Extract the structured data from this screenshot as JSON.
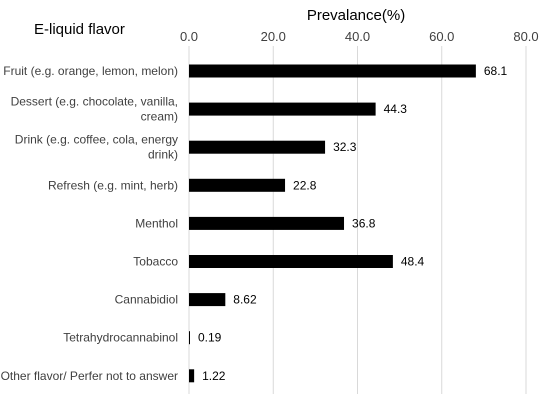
{
  "chart_data": {
    "type": "bar",
    "orientation": "horizontal",
    "category_axis_title": "E-liquid flavor",
    "value_axis_title": "Prevalance(%)",
    "xlim": [
      0,
      80
    ],
    "xticks": [
      "0.0",
      "20.0",
      "40.0",
      "60.0",
      "80.0"
    ],
    "grid": true,
    "bar_color": "#000000",
    "categories": [
      [
        "Fruit (e.g. orange, lemon, melon)"
      ],
      [
        "Dessert (e.g. chocolate, vanilla,",
        "cream)"
      ],
      [
        "Drink (e.g. coffee, cola, energy",
        "drink)"
      ],
      [
        "Refresh (e.g. mint, herb)"
      ],
      [
        "Menthol"
      ],
      [
        "Tobacco"
      ],
      [
        "Cannabidiol"
      ],
      [
        "Tetrahydrocannabinol"
      ],
      [
        "Other flavor/ Perfer not to answer"
      ]
    ],
    "values": [
      68.1,
      44.3,
      32.3,
      22.8,
      36.8,
      48.4,
      8.62,
      0.19,
      1.22
    ],
    "value_labels": [
      "68.1",
      "44.3",
      "32.3",
      "22.8",
      "36.8",
      "48.4",
      "8.62",
      "0.19",
      "1.22"
    ]
  }
}
